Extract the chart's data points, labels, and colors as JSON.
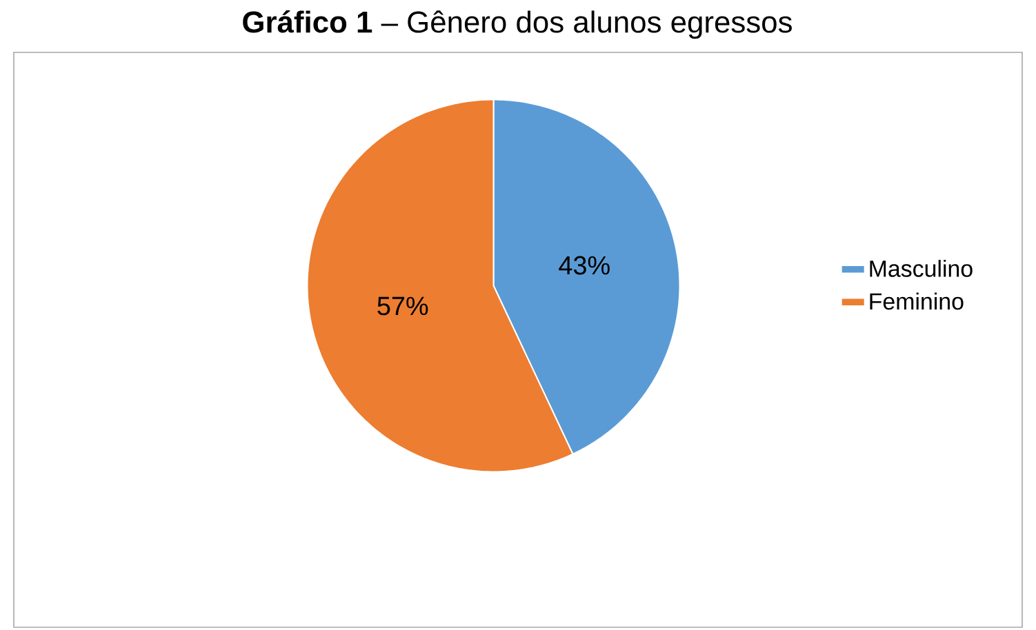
{
  "chart_data": {
    "type": "pie",
    "title": "**Gráfico 1** – Gênero dos alunos egressos",
    "categories": [
      "Masculino",
      "Feminino"
    ],
    "values": [
      43,
      57
    ],
    "colors": [
      "#5b9bd5",
      "#ed7d31"
    ],
    "value_labels": [
      "43%",
      "57%"
    ],
    "legend": "right"
  }
}
